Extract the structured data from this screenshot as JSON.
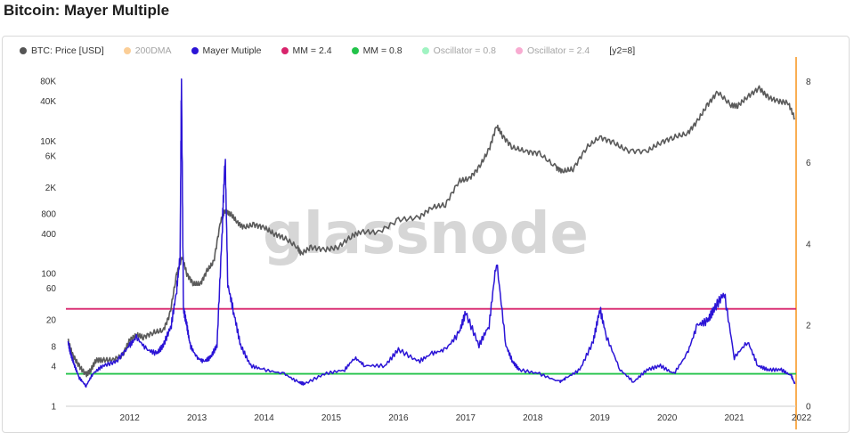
{
  "title": "Bitcoin: Mayer Multiple",
  "watermark": "glassnode",
  "legend": [
    {
      "label": "BTC: Price [USD]",
      "color": "#555555",
      "faded": false
    },
    {
      "label": "200DMA",
      "color": "#f7931a",
      "faded": true
    },
    {
      "label": "Mayer Mutiple",
      "color": "#2b14d6",
      "faded": false
    },
    {
      "label": "MM = 2.4",
      "color": "#d8246c",
      "faded": false
    },
    {
      "label": "MM = 0.8",
      "color": "#22c34a",
      "faded": false
    },
    {
      "label": "Oscillator = 0.8",
      "color": "#2ee67a",
      "faded": true
    },
    {
      "label": "Oscillator = 2.4",
      "color": "#f0469a",
      "faded": true
    },
    {
      "label": "[y2=8]",
      "color": "",
      "faded": false
    }
  ],
  "colors": {
    "price": "#5a5a5a",
    "mayer": "#2b14d6",
    "mm_high": "#d8246c",
    "mm_low": "#22c34a",
    "right_axis": "#f7931a",
    "grid": "#eeeeee"
  },
  "chart_data": {
    "type": "line",
    "title": "Bitcoin: Mayer Multiple",
    "x_ticks": [
      "2012",
      "2013",
      "2014",
      "2015",
      "2016",
      "2017",
      "2018",
      "2019",
      "2020",
      "2021",
      "2022"
    ],
    "x_range": [
      2011.55,
      2022.42
    ],
    "y_left": {
      "scale": "log",
      "range": [
        1,
        120000
      ],
      "ticks": [
        "1",
        "4",
        "8",
        "20",
        "60",
        "100",
        "400",
        "800",
        "2K",
        "6K",
        "10K",
        "40K",
        "80K"
      ],
      "tick_values": [
        1,
        4,
        8,
        20,
        60,
        100,
        400,
        800,
        2000,
        6000,
        10000,
        40000,
        80000
      ]
    },
    "y_right": {
      "scale": "linear",
      "range": [
        0,
        8.3
      ],
      "ticks": [
        "0",
        "2",
        "4",
        "6",
        "8"
      ],
      "tick_values": [
        0,
        2,
        4,
        6,
        8
      ]
    },
    "reference_lines": [
      {
        "name": "MM = 2.4",
        "value": 2.4
      },
      {
        "name": "MM = 0.8",
        "value": 0.8
      }
    ],
    "series": [
      {
        "name": "BTC: Price [USD]",
        "axis": "left",
        "x": [
          2011.58,
          2011.65,
          2011.75,
          2011.85,
          2011.92,
          2012.0,
          2012.1,
          2012.25,
          2012.4,
          2012.5,
          2012.6,
          2012.7,
          2012.85,
          2013.0,
          2013.1,
          2013.2,
          2013.28,
          2013.35,
          2013.45,
          2013.55,
          2013.65,
          2013.75,
          2013.85,
          2013.92,
          2014.0,
          2014.1,
          2014.2,
          2014.35,
          2014.5,
          2014.65,
          2014.8,
          2015.0,
          2015.05,
          2015.2,
          2015.4,
          2015.6,
          2015.8,
          2015.95,
          2016.2,
          2016.5,
          2016.8,
          2017.0,
          2017.2,
          2017.4,
          2017.55,
          2017.7,
          2017.85,
          2017.96,
          2018.05,
          2018.2,
          2018.4,
          2018.6,
          2018.85,
          2018.95,
          2019.1,
          2019.3,
          2019.5,
          2019.7,
          2019.9,
          2020.2,
          2020.4,
          2020.6,
          2020.8,
          2020.95,
          2021.1,
          2021.25,
          2021.45,
          2021.55,
          2021.7,
          2021.87,
          2022.0,
          2022.15,
          2022.3,
          2022.4
        ],
        "y": [
          10,
          6,
          4,
          3,
          3.5,
          5,
          5,
          5,
          6,
          10,
          12,
          11,
          13,
          14,
          25,
          100,
          180,
          100,
          70,
          70,
          110,
          150,
          600,
          900,
          800,
          600,
          500,
          550,
          500,
          400,
          350,
          250,
          200,
          250,
          230,
          250,
          370,
          430,
          420,
          650,
          700,
          1000,
          1100,
          2500,
          2700,
          4000,
          7500,
          17000,
          12000,
          8000,
          7000,
          6500,
          4000,
          3500,
          3800,
          8000,
          11500,
          9500,
          7200,
          7000,
          9500,
          11500,
          13000,
          20000,
          35000,
          55000,
          35000,
          34000,
          47000,
          63000,
          46000,
          40000,
          38000,
          22000
        ]
      },
      {
        "name": "Mayer Mutiple",
        "axis": "right",
        "x": [
          2011.58,
          2011.62,
          2011.68,
          2011.75,
          2011.85,
          2011.95,
          2012.1,
          2012.3,
          2012.5,
          2012.6,
          2012.75,
          2012.9,
          2013.0,
          2013.12,
          2013.2,
          2013.25,
          2013.27,
          2013.3,
          2013.35,
          2013.4,
          2013.5,
          2013.6,
          2013.7,
          2013.8,
          2013.88,
          2013.92,
          2013.96,
          2014.05,
          2014.15,
          2014.3,
          2014.5,
          2014.8,
          2015.0,
          2015.1,
          2015.4,
          2015.7,
          2015.85,
          2016.0,
          2016.3,
          2016.5,
          2016.8,
          2017.0,
          2017.2,
          2017.4,
          2017.5,
          2017.7,
          2017.85,
          2017.96,
          2018.1,
          2018.2,
          2018.3,
          2018.6,
          2018.9,
          2019.0,
          2019.2,
          2019.4,
          2019.5,
          2019.6,
          2019.8,
          2020.0,
          2020.2,
          2020.4,
          2020.6,
          2020.8,
          2020.95,
          2021.1,
          2021.2,
          2021.35,
          2021.5,
          2021.7,
          2021.85,
          2022.0,
          2022.2,
          2022.35,
          2022.4
        ],
        "y": [
          1.6,
          1.3,
          1.0,
          0.7,
          0.5,
          0.8,
          1.0,
          1.1,
          1.5,
          1.7,
          1.4,
          1.3,
          1.5,
          2.0,
          2.9,
          3.7,
          8.1,
          2.4,
          2.0,
          1.5,
          1.2,
          1.1,
          1.2,
          1.5,
          4.5,
          6.2,
          3.0,
          2.3,
          1.5,
          1.0,
          0.9,
          0.8,
          0.6,
          0.55,
          0.8,
          0.9,
          1.2,
          1.0,
          1.0,
          1.4,
          1.1,
          1.3,
          1.4,
          1.8,
          2.3,
          1.5,
          2.0,
          3.6,
          1.5,
          1.1,
          0.9,
          0.8,
          0.6,
          0.7,
          0.9,
          1.6,
          2.4,
          1.7,
          0.9,
          0.6,
          0.9,
          1.0,
          0.8,
          1.3,
          2.0,
          2.1,
          2.4,
          2.8,
          1.2,
          1.6,
          1.0,
          0.9,
          0.9,
          0.75,
          0.55
        ]
      }
    ]
  }
}
